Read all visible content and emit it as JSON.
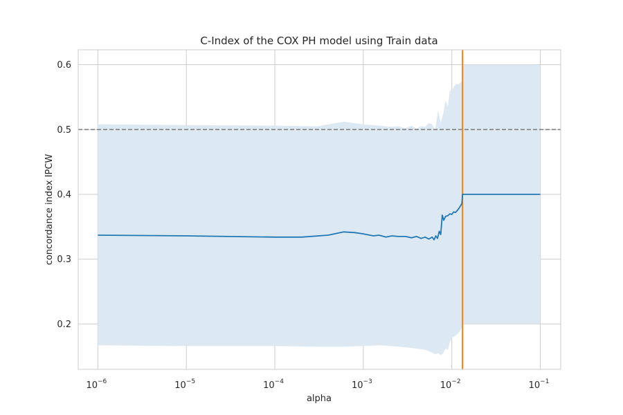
{
  "chart_data": {
    "type": "line",
    "title": "C-Index of the COX PH model using Train data",
    "xlabel": "alpha",
    "ylabel": "concordance index IPCW",
    "xscale": "log",
    "xlim": [
      6e-07,
      0.17
    ],
    "ylim": [
      0.13,
      0.623
    ],
    "xticks": [
      1e-06,
      1e-05,
      0.0001,
      0.001,
      0.01,
      0.1
    ],
    "xtick_labels": [
      {
        "base": "10",
        "exp": "−6"
      },
      {
        "base": "10",
        "exp": "−5"
      },
      {
        "base": "10",
        "exp": "−4"
      },
      {
        "base": "10",
        "exp": "−3"
      },
      {
        "base": "10",
        "exp": "−2"
      },
      {
        "base": "10",
        "exp": "−1"
      }
    ],
    "yticks": [
      0.2,
      0.3,
      0.4,
      0.5,
      0.6
    ],
    "ytick_labels": [
      "0.2",
      "0.3",
      "0.4",
      "0.5",
      "0.6"
    ],
    "grid": true,
    "series": [
      {
        "kind": "mean_line",
        "color": "#1f77b4",
        "x": [
          1e-06,
          1e-05,
          0.0001,
          0.0002,
          0.0004,
          0.0006,
          0.0008,
          0.001,
          0.0013,
          0.0015,
          0.0018,
          0.0021,
          0.0025,
          0.003,
          0.0035,
          0.004,
          0.0045,
          0.005,
          0.0055,
          0.006,
          0.0063,
          0.0066,
          0.0069,
          0.0072,
          0.0075,
          0.0078,
          0.0081,
          0.0085,
          0.009,
          0.0095,
          0.01,
          0.0105,
          0.011,
          0.0115,
          0.012,
          0.0125,
          0.013,
          0.0131,
          0.0132,
          0.1
        ],
        "y": [
          0.337,
          0.336,
          0.334,
          0.334,
          0.337,
          0.342,
          0.341,
          0.339,
          0.336,
          0.337,
          0.334,
          0.336,
          0.335,
          0.335,
          0.333,
          0.335,
          0.332,
          0.334,
          0.331,
          0.334,
          0.33,
          0.336,
          0.332,
          0.343,
          0.338,
          0.368,
          0.36,
          0.366,
          0.367,
          0.37,
          0.369,
          0.373,
          0.372,
          0.375,
          0.378,
          0.382,
          0.386,
          0.392,
          0.4,
          0.4
        ]
      },
      {
        "kind": "band_upper",
        "color": "#dce8f2",
        "x": [
          1e-06,
          1e-05,
          0.0001,
          0.0003,
          0.0006,
          0.001,
          0.0015,
          0.002,
          0.0025,
          0.003,
          0.0035,
          0.004,
          0.0045,
          0.005,
          0.0055,
          0.006,
          0.0065,
          0.007,
          0.0075,
          0.008,
          0.0085,
          0.009,
          0.0095,
          0.01,
          0.011,
          0.012,
          0.013,
          0.0132,
          0.1
        ],
        "y": [
          0.508,
          0.507,
          0.506,
          0.505,
          0.512,
          0.508,
          0.506,
          0.504,
          0.505,
          0.502,
          0.506,
          0.501,
          0.505,
          0.504,
          0.51,
          0.508,
          0.5,
          0.53,
          0.51,
          0.525,
          0.545,
          0.535,
          0.56,
          0.56,
          0.57,
          0.57,
          0.575,
          0.6,
          0.6
        ]
      },
      {
        "kind": "band_lower",
        "color": "#dce8f2",
        "x": [
          1e-06,
          1e-05,
          0.0001,
          0.0003,
          0.0006,
          0.001,
          0.0015,
          0.002,
          0.0025,
          0.003,
          0.0035,
          0.004,
          0.0045,
          0.005,
          0.0055,
          0.006,
          0.0065,
          0.007,
          0.0075,
          0.008,
          0.0085,
          0.009,
          0.0095,
          0.01,
          0.011,
          0.012,
          0.013,
          0.0132,
          0.1
        ],
        "y": [
          0.167,
          0.166,
          0.166,
          0.165,
          0.165,
          0.166,
          0.167,
          0.166,
          0.165,
          0.164,
          0.163,
          0.162,
          0.161,
          0.16,
          0.158,
          0.156,
          0.153,
          0.155,
          0.152,
          0.155,
          0.162,
          0.16,
          0.172,
          0.178,
          0.182,
          0.186,
          0.194,
          0.2,
          0.2
        ]
      }
    ],
    "reference_lines": [
      {
        "kind": "horizontal",
        "y": 0.5,
        "style": "dashed",
        "color": "#808080"
      },
      {
        "kind": "vertical",
        "x": 0.0132,
        "style": "solid",
        "color": "#ff7f0e"
      }
    ],
    "colors": {
      "grid": "#cccccc",
      "axes_edge": "#cccccc",
      "text": "#262626"
    }
  }
}
